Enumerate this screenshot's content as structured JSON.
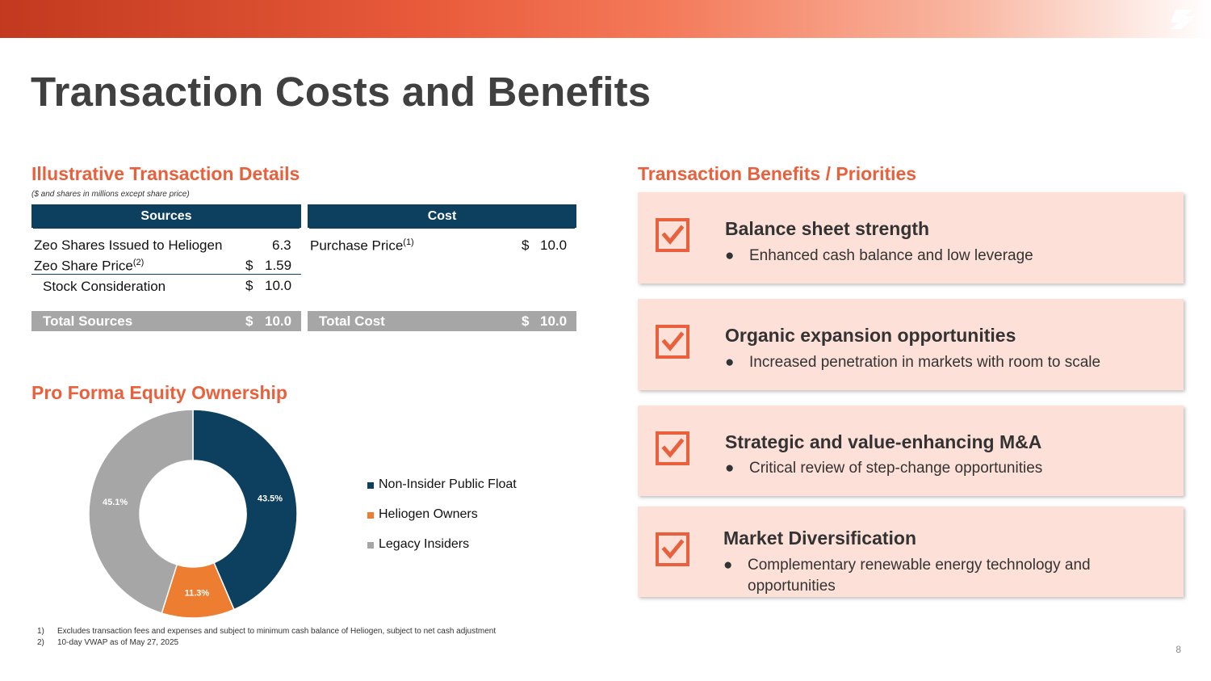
{
  "title": "Transaction Costs and Benefits",
  "details": {
    "heading": "Illustrative Transaction Details",
    "subnote": "($ and shares in millions except share price)",
    "sources_header": "Sources",
    "cost_header": "Cost",
    "sources_rows": [
      {
        "label": "Zeo Shares Issued to Heliogen",
        "sup": "",
        "currency": "",
        "value": "6.3"
      },
      {
        "label": "Zeo Share Price",
        "sup": "(2)",
        "currency": "$",
        "value": "1.59"
      },
      {
        "label": "Stock Consideration",
        "sup": "",
        "currency": "$",
        "value": "10.0"
      }
    ],
    "cost_rows": [
      {
        "label": "Purchase Price",
        "sup": "(1)",
        "currency": "$",
        "value": "10.0"
      }
    ],
    "total_sources": {
      "label": "Total Sources",
      "currency": "$",
      "value": "10.0"
    },
    "total_cost": {
      "label": "Total Cost",
      "currency": "$",
      "value": "10.0"
    }
  },
  "ownership": {
    "heading": "Pro Forma Equity Ownership"
  },
  "chart_data": {
    "type": "pie",
    "donut": true,
    "categories": [
      "Non-Insider Public Float",
      "Heliogen Owners",
      "Legacy Insiders"
    ],
    "values": [
      43.5,
      11.3,
      45.1
    ],
    "labels": [
      "43.5%",
      "11.3%",
      "45.1%"
    ],
    "colors": [
      "#0d3f5f",
      "#ed7d31",
      "#a6a6a6"
    ],
    "legend": "right"
  },
  "benefits": {
    "heading": "Transaction Benefits / Priorities",
    "items": [
      {
        "title": "Balance sheet strength",
        "bullet": "Enhanced cash balance and low leverage"
      },
      {
        "title": "Organic expansion opportunities",
        "bullet": "Increased penetration in markets with room to scale"
      },
      {
        "title": "Strategic and value-enhancing M&A",
        "bullet": "Critical review of step-change opportunities"
      },
      {
        "title": "Market Diversification",
        "bullet": "Complementary renewable energy technology and opportunities"
      }
    ],
    "bullet_char": "●"
  },
  "footnotes": [
    {
      "num": "1)",
      "text": "Excludes transaction fees and expenses and subject to minimum cash balance of Heliogen, subject to net cash adjustment"
    },
    {
      "num": "2)",
      "text": "10-day VWAP as of May 27, 2025"
    }
  ],
  "page_number": "8",
  "colors": {
    "accent": "#e8603c",
    "navy": "#0d3f5f",
    "orange": "#ed7d31",
    "gray": "#a6a6a6",
    "card_bg": "#fde0d8"
  }
}
